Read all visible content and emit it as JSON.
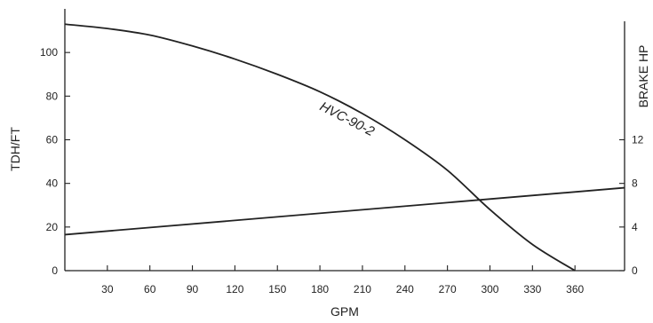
{
  "chart_data": {
    "type": "line",
    "xlabel": "GPM",
    "ylabel": "TDH/FT",
    "y2label": "BRAKE HP",
    "x_ticks": [
      30,
      60,
      90,
      120,
      150,
      180,
      210,
      240,
      270,
      300,
      330,
      360
    ],
    "y_ticks": [
      0,
      20,
      40,
      60,
      80,
      100
    ],
    "y2_ticks": [
      0,
      4,
      8,
      12
    ],
    "xlim": [
      0,
      395
    ],
    "ylim": [
      0,
      120
    ],
    "y2lim": [
      0,
      24
    ],
    "grid": false,
    "series": [
      {
        "name": "HVC-90-2",
        "axis": "left",
        "x": [
          0,
          30,
          60,
          90,
          120,
          150,
          180,
          210,
          240,
          270,
          300,
          330,
          360
        ],
        "y": [
          113,
          111,
          108,
          103,
          97,
          90,
          82,
          72,
          60,
          46,
          28,
          12,
          0
        ]
      },
      {
        "axis": "right",
        "x": [
          0,
          395
        ],
        "y": [
          3.3,
          7.6
        ]
      }
    ]
  }
}
